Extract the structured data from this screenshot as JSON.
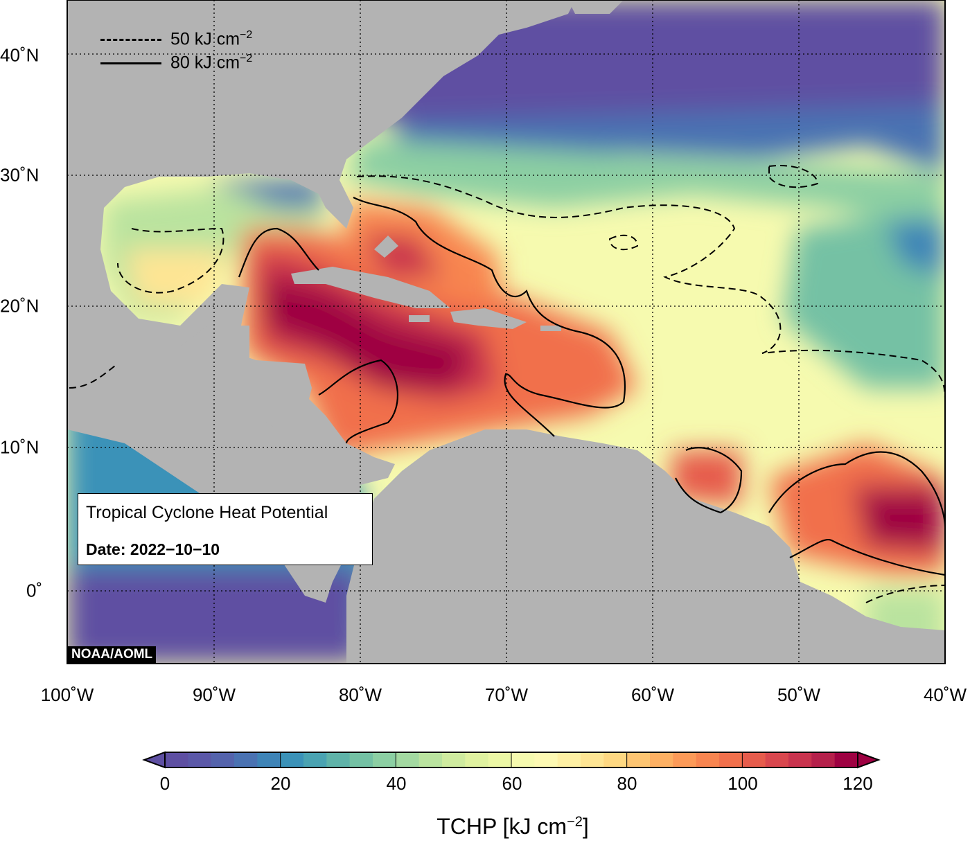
{
  "map": {
    "longitude_labels": [
      "100˚W",
      "90˚W",
      "80˚W",
      "70˚W",
      "60˚W",
      "50˚W",
      "40˚W"
    ],
    "latitude_labels": [
      "40˚N",
      "30˚N",
      "20˚N",
      "10˚N",
      "0˚"
    ],
    "contour_legend": {
      "dashed_label": "50 kJ cm",
      "solid_label": "80 kJ cm",
      "exponent": "−2"
    },
    "info_box": {
      "title": "Tropical Cyclone Heat Potential",
      "date": "Date: 2022−10−10"
    },
    "credit": "NOAA/AOML",
    "colors": {
      "land": "#b3b3b3",
      "low": "#5e4fa2",
      "high": "#9e0142"
    }
  },
  "colorbar": {
    "tick_labels": [
      "0",
      "20",
      "40",
      "60",
      "80",
      "100",
      "120"
    ],
    "title": "TCHP [kJ cm",
    "title_exponent": "−2",
    "title_suffix": "]",
    "colors": [
      "#5e4fa2",
      "#5b58a8",
      "#5463ac",
      "#4a72b2",
      "#3e84b7",
      "#3b92b8",
      "#4aa3b2",
      "#5fb3a9",
      "#74c1a4",
      "#8ccfa3",
      "#a3d9a1",
      "#bae39f",
      "#cfeb9f",
      "#e0f2a0",
      "#ecf7a5",
      "#f6faaf",
      "#fdf9b3",
      "#fef0a4",
      "#fee594",
      "#fed882",
      "#fdc572",
      "#fdb063",
      "#fc9a58",
      "#f88550",
      "#f1704c",
      "#e65c4c",
      "#d9474e",
      "#c9334e",
      "#b5204b",
      "#9e0142"
    ]
  }
}
